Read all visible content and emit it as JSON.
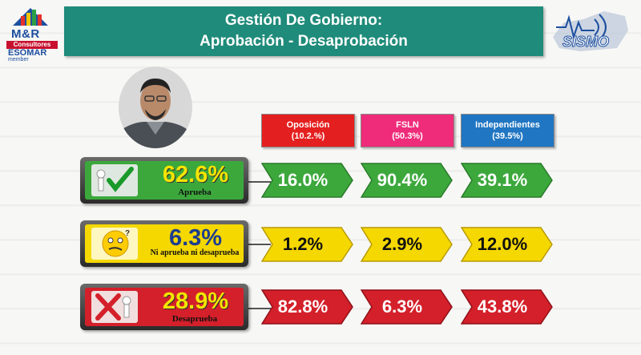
{
  "logo": {
    "brand": "M&R",
    "consultores": "Consultores",
    "esomar": "ESOMAR",
    "member": "member"
  },
  "title": {
    "line1": "Gestión De Gobierno:",
    "line2": "Aprobación - Desaprobación"
  },
  "sismo": {
    "text": "SISMO"
  },
  "colors": {
    "oposicion": "#e41f1f",
    "fsln": "#ee2c7a",
    "independientes": "#2076c2",
    "aprueba": "#3ca83c",
    "ni": "#f5d800",
    "desaprueba": "#d4202a",
    "title_bg": "#1f8b7a"
  },
  "columns": [
    {
      "name": "Oposición",
      "pct": "(10.2.%)"
    },
    {
      "name": "FSLN",
      "pct": "(50.3%)"
    },
    {
      "name": "Independientes",
      "pct": "(39.5%)"
    }
  ],
  "rows": [
    {
      "label": "Aprueba",
      "total": "62.6%",
      "icon": "checkmark-icon",
      "values": [
        "16.0%",
        "90.4%",
        "39.1%"
      ]
    },
    {
      "label": "Ni aprueba ni desaprueba",
      "total": "6.3%",
      "icon": "confused-face-icon",
      "values": [
        "1.2%",
        "2.9%",
        "12.0%"
      ]
    },
    {
      "label": "Desaprueba",
      "total": "28.9%",
      "icon": "red-x-icon",
      "values": [
        "82.8%",
        "6.3%",
        "43.8%"
      ]
    }
  ],
  "chart_data": {
    "type": "table",
    "title": "Gestión De Gobierno: Aprobación - Desaprobación",
    "columns": [
      "Oposición (10.2.%)",
      "FSLN (50.3%)",
      "Independientes (39.5%)"
    ],
    "rows": [
      {
        "name": "Aprueba",
        "total": 62.6,
        "values": [
          16.0,
          90.4,
          39.1
        ]
      },
      {
        "name": "Ni aprueba ni desaprueba",
        "total": 6.3,
        "values": [
          1.2,
          2.9,
          12.0
        ]
      },
      {
        "name": "Desaprueba",
        "total": 28.9,
        "values": [
          82.8,
          6.3,
          43.8
        ]
      }
    ]
  }
}
